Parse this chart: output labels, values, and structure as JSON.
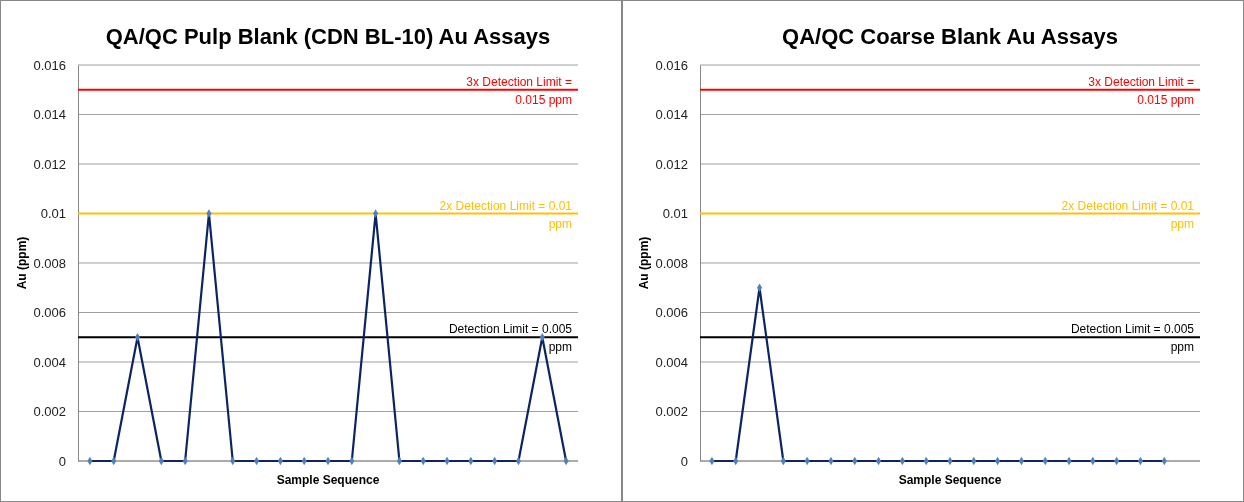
{
  "chart_data": [
    {
      "type": "line",
      "title": "QA/QC Pulp Blank (CDN BL-10) Au Assays",
      "xlabel": "Sample Sequence",
      "ylabel": "Au (ppm)",
      "categories": [
        null,
        null,
        null,
        null,
        null,
        null,
        null,
        null,
        null,
        null,
        null,
        null,
        null,
        null,
        null,
        null,
        null,
        null,
        null,
        null,
        null
      ],
      "series": [
        {
          "color": "#0c2461",
          "values": [
            0,
            0,
            0.005,
            0,
            0,
            0.01,
            0,
            0,
            0,
            0,
            0,
            0,
            0.01,
            0,
            0,
            0,
            0,
            0,
            0,
            0.005,
            0
          ]
        }
      ],
      "ylim": [
        0,
        0.016
      ],
      "yticks": [
        0,
        0.002,
        0.004,
        0.006,
        0.008,
        0.01,
        0.012,
        0.014,
        0.016
      ],
      "grid": "y",
      "tick_labels": "y",
      "marker": "diamond",
      "line_style": "solid",
      "ref_lines": [
        {
          "axis": "y",
          "value": 0.015,
          "label": "3x Detection Limit = 0.015 ppm",
          "color": "#ff0000"
        },
        {
          "axis": "y",
          "value": 0.01,
          "label": "2x Detection Limit = 0.01 ppm",
          "color": "#ffc000"
        },
        {
          "axis": "y",
          "value": 0.005,
          "label": "Detection Limit = 0.005 ppm",
          "color": "#000000"
        }
      ]
    },
    {
      "type": "line",
      "title": "QA/QC Coarse Blank Au Assays",
      "xlabel": "Sample Sequence",
      "ylabel": "Au (ppm)",
      "categories": [
        null,
        null,
        null,
        null,
        null,
        null,
        null,
        null,
        null,
        null,
        null,
        null,
        null,
        null,
        null,
        null,
        null,
        null,
        null,
        null,
        null
      ],
      "series": [
        {
          "color": "#0c2461",
          "values": [
            0,
            0,
            0.007,
            0,
            0,
            0,
            0,
            0,
            0,
            0,
            0,
            0,
            0,
            0,
            0,
            0,
            0,
            0,
            0,
            0,
            null
          ]
        }
      ],
      "ylim": [
        0,
        0.016
      ],
      "yticks": [
        0,
        0.002,
        0.004,
        0.006,
        0.008,
        0.01,
        0.012,
        0.014,
        0.016
      ],
      "grid": "y",
      "tick_labels": "y",
      "marker": "diamond",
      "line_style": "solid",
      "ref_lines": [
        {
          "axis": "y",
          "value": 0.015,
          "label": "3x Detection Limit = 0.015 ppm",
          "color": "#ff0000"
        },
        {
          "axis": "y",
          "value": 0.01,
          "label": "2x Detection Limit = 0.01 ppm",
          "color": "#ffc000"
        },
        {
          "axis": "y",
          "value": 0.005,
          "label": "Detection Limit = 0.005 ppm",
          "color": "#000000"
        }
      ]
    }
  ]
}
